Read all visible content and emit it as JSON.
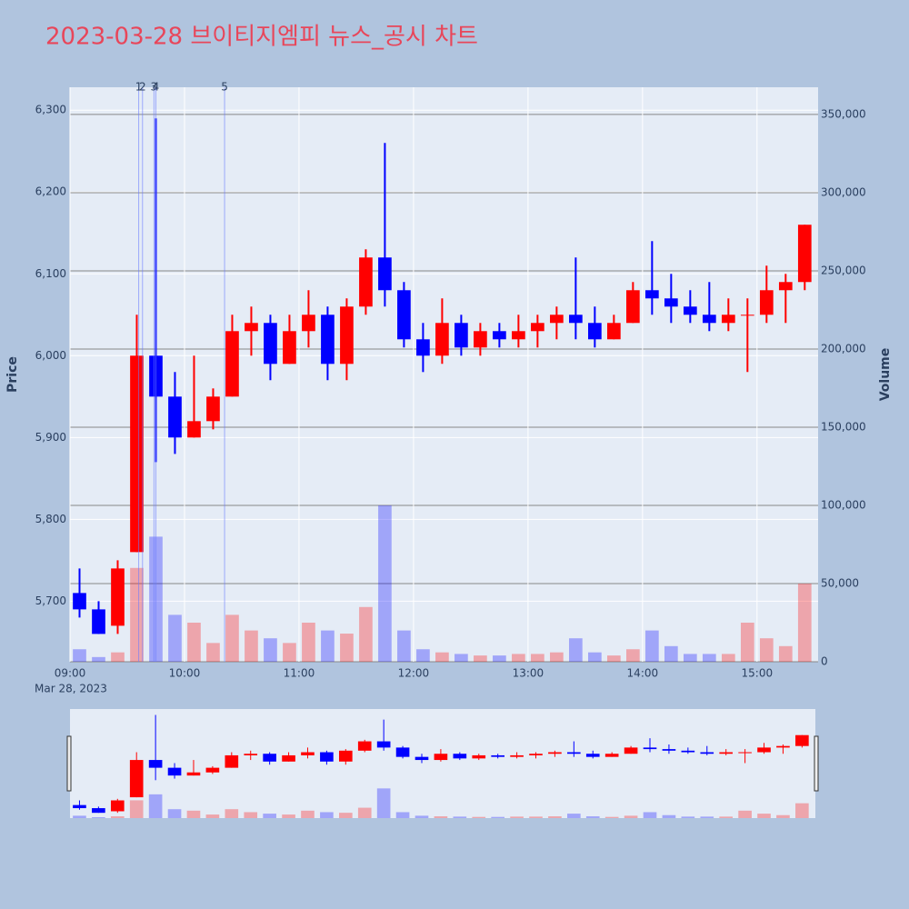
{
  "chart_data": {
    "type": "candlestick",
    "title": "2023-03-28 브이티지엠피 뉴스_공시 차트",
    "x_label_date": "Mar 28, 2023",
    "y_label": "Price",
    "y2_label": "Volume",
    "increasing_color": "#ff0000",
    "decreasing_color": "#0000ff",
    "x": [
      "09:00",
      "09:10",
      "09:20",
      "09:30",
      "09:40",
      "09:50",
      "10:00",
      "10:10",
      "10:20",
      "10:30",
      "10:40",
      "10:50",
      "11:00",
      "11:10",
      "11:20",
      "11:30",
      "11:40",
      "11:50",
      "12:00",
      "12:10",
      "12:20",
      "12:30",
      "12:40",
      "12:50",
      "13:00",
      "13:10",
      "13:20",
      "13:30",
      "13:40",
      "13:50",
      "14:00",
      "14:10",
      "14:20",
      "14:30",
      "14:40",
      "14:50",
      "15:00",
      "15:10",
      "15:20"
    ],
    "open": [
      5710,
      5690,
      5670,
      5760,
      6000,
      5950,
      5900,
      5920,
      5950,
      6030,
      6040,
      5990,
      6030,
      6050,
      5990,
      6060,
      6120,
      6080,
      6020,
      6000,
      6040,
      6010,
      6030,
      6020,
      6030,
      6040,
      6050,
      6040,
      6020,
      6040,
      6080,
      6070,
      6060,
      6050,
      6040,
      6050,
      6050,
      6080,
      6090
    ],
    "high": [
      5740,
      5700,
      5750,
      6050,
      6290,
      5980,
      6000,
      5960,
      6050,
      6060,
      6050,
      6050,
      6080,
      6060,
      6070,
      6130,
      6260,
      6090,
      6040,
      6070,
      6050,
      6040,
      6040,
      6050,
      6050,
      6060,
      6120,
      6060,
      6050,
      6090,
      6140,
      6100,
      6080,
      6090,
      6070,
      6070,
      6110,
      6100,
      6160
    ],
    "low": [
      5680,
      5660,
      5660,
      5760,
      5870,
      5880,
      5900,
      5910,
      5950,
      6000,
      5970,
      5990,
      6010,
      5970,
      5970,
      6050,
      6060,
      6010,
      5980,
      5990,
      6000,
      6000,
      6010,
      6010,
      6010,
      6020,
      6020,
      6010,
      6020,
      6040,
      6050,
      6040,
      6040,
      6030,
      6030,
      5980,
      6040,
      6040,
      6080
    ],
    "close": [
      5690,
      5660,
      5740,
      6000,
      5950,
      5900,
      5920,
      5950,
      6030,
      6040,
      5990,
      6030,
      6050,
      5990,
      6060,
      6120,
      6080,
      6020,
      6000,
      6040,
      6010,
      6030,
      6020,
      6030,
      6040,
      6050,
      6040,
      6020,
      6040,
      6080,
      6070,
      6060,
      6050,
      6040,
      6050,
      6050,
      6080,
      6090,
      6160
    ],
    "volume": [
      8000,
      3000,
      6000,
      60000,
      80000,
      30000,
      25000,
      12000,
      30000,
      20000,
      15000,
      12000,
      25000,
      20000,
      18000,
      35000,
      100000,
      20000,
      8000,
      6000,
      5000,
      4000,
      4000,
      5000,
      5000,
      6000,
      15000,
      6000,
      4000,
      8000,
      20000,
      10000,
      5000,
      5000,
      5000,
      25000,
      15000,
      10000,
      50000
    ],
    "xlim": [
      "09:00",
      "15:32"
    ],
    "xticks": [
      "09:00",
      "10:00",
      "11:00",
      "12:00",
      "13:00",
      "14:00",
      "15:00"
    ],
    "ylim": [
      5626,
      6328
    ],
    "yticks": [
      {
        "value": 5700,
        "label": "5,700"
      },
      {
        "value": 5800,
        "label": "5,800"
      },
      {
        "value": 5900,
        "label": "5,900"
      },
      {
        "value": 6000,
        "label": "6,000"
      },
      {
        "value": 6100,
        "label": "6,100"
      },
      {
        "value": 6200,
        "label": "6,200"
      },
      {
        "value": 6300,
        "label": "6,300"
      }
    ],
    "y2lim": [
      0,
      367400
    ],
    "y2ticks": [
      0,
      {
        "value": 50000,
        "label": "50,000"
      },
      {
        "value": 100000,
        "label": "100,000"
      },
      {
        "value": 150000,
        "label": "150,000"
      },
      {
        "value": 200000,
        "label": "200,000"
      },
      {
        "value": 250000,
        "label": "250,000"
      },
      {
        "value": 300000,
        "label": "300,000"
      },
      {
        "value": 350000,
        "label": "350,000"
      }
    ],
    "annotations": [
      {
        "x": "09:36",
        "text": "1"
      },
      {
        "x": "09:38",
        "text": "2"
      },
      {
        "x": "09:44",
        "text": "3"
      },
      {
        "x": "09:45",
        "text": "4"
      },
      {
        "x": "10:21",
        "text": "5"
      }
    ]
  }
}
